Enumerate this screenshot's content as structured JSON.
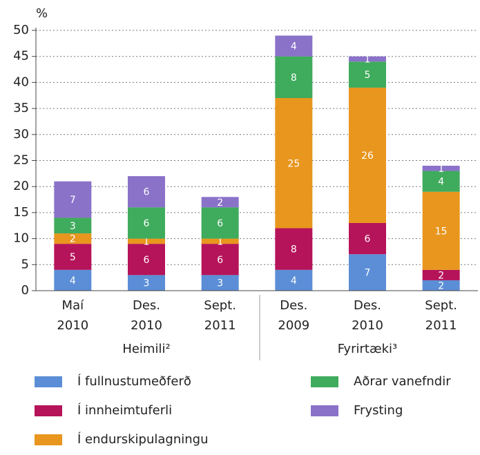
{
  "chart_data": {
    "type": "stacked_bar",
    "y_label": "%",
    "categories": [
      [
        "Maí",
        "2010"
      ],
      [
        "Des.",
        "2010"
      ],
      [
        "Sept.",
        "2011"
      ],
      [
        "Des.",
        "2009"
      ],
      [
        "Des.",
        "2010"
      ],
      [
        "Sept.",
        "2011"
      ]
    ],
    "groups": [
      "Heimili²",
      "Fyrirtæki³"
    ],
    "series": [
      {
        "name": "Í fullnustumeðferð",
        "color": "#5b8ed6",
        "values": [
          4,
          3,
          3,
          4,
          7,
          2
        ]
      },
      {
        "name": "Í innheimtuferli",
        "color": "#b5135a",
        "values": [
          5,
          6,
          6,
          8,
          6,
          2
        ]
      },
      {
        "name": "Í endurskipulagningu",
        "color": "#e8961e",
        "values": [
          2,
          1,
          1,
          25,
          26,
          15
        ]
      },
      {
        "name": "Aðrar vanefndir",
        "color": "#3fab5c",
        "values": [
          3,
          6,
          6,
          8,
          5,
          4
        ]
      },
      {
        "name": "Frysting",
        "color": "#8a72c9",
        "values": [
          7,
          6,
          2,
          4,
          1,
          1
        ]
      }
    ],
    "ylim": [
      0,
      50
    ],
    "yticks": [
      0,
      5,
      10,
      15,
      20,
      25,
      30,
      35,
      40,
      45,
      50
    ],
    "grid": true
  }
}
